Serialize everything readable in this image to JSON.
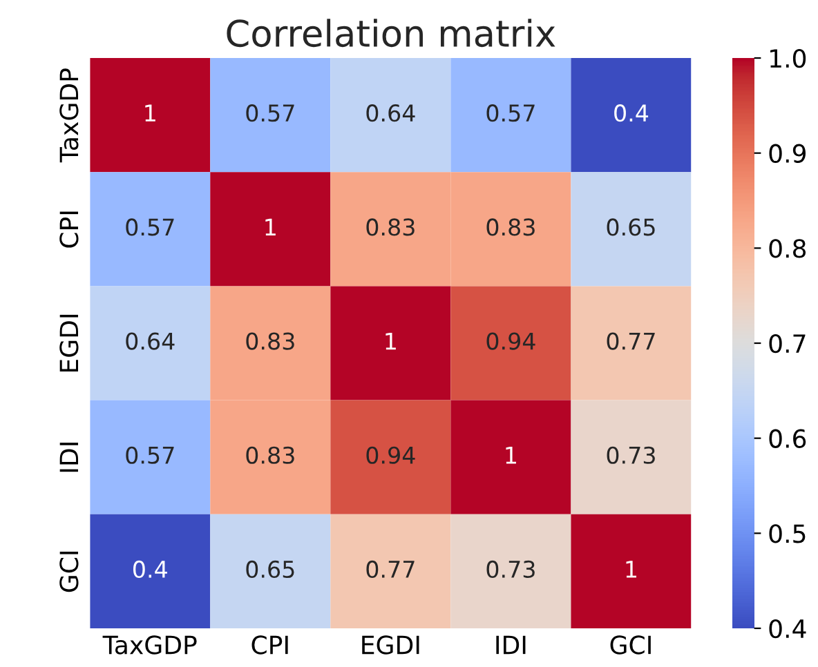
{
  "chart_data": {
    "type": "heatmap",
    "title": "Correlation matrix",
    "categories": [
      "TaxGDP",
      "CPI",
      "EGDI",
      "IDI",
      "GCI"
    ],
    "y_categories": [
      "TaxGDP",
      "CPI",
      "EGDI",
      "IDI",
      "GCI"
    ],
    "cells": [
      [
        1,
        0.57,
        0.64,
        0.57,
        0.4
      ],
      [
        0.57,
        1,
        0.83,
        0.83,
        0.65
      ],
      [
        0.64,
        0.83,
        1,
        0.94,
        0.77
      ],
      [
        0.57,
        0.83,
        0.94,
        1,
        0.73
      ],
      [
        0.4,
        0.65,
        0.77,
        0.73,
        1
      ]
    ],
    "data_labels": true,
    "clim": [
      0.4,
      1.0
    ],
    "cticks": [
      0.4,
      0.5,
      0.6,
      0.7,
      0.8,
      0.9,
      {
        "value": 1.0,
        "label": "1.0"
      }
    ]
  }
}
